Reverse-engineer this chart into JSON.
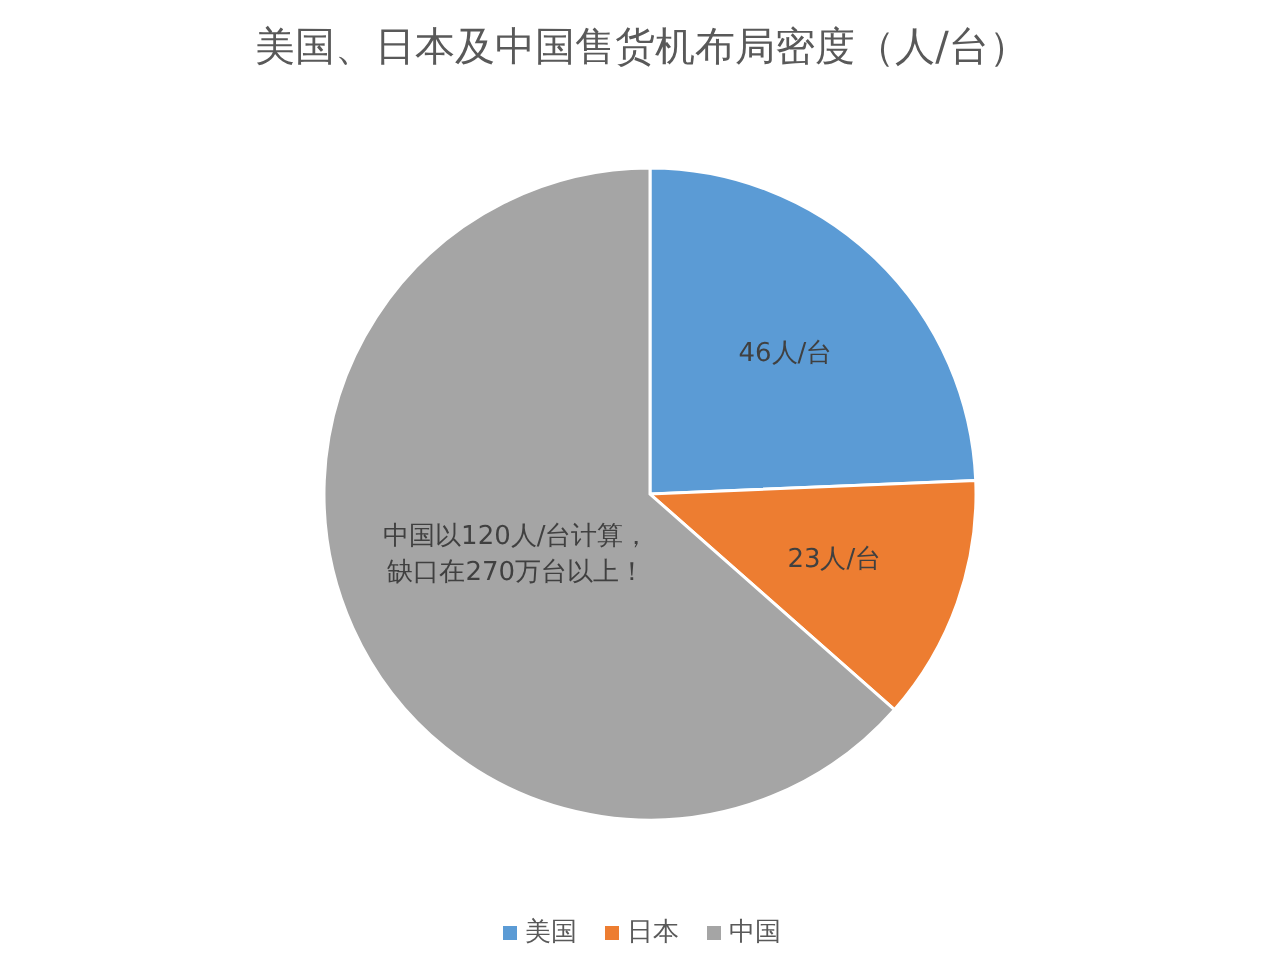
{
  "chart_data": {
    "type": "pie",
    "title": "美国、日本及中国售货机布局密度（人/台）",
    "categories": [
      "美国",
      "日本",
      "中国"
    ],
    "values": [
      46,
      23,
      120
    ],
    "colors": [
      "#5b9bd5",
      "#ed7d31",
      "#a5a5a5"
    ],
    "value_labels": [
      "46人/台",
      "23人/台",
      "中国以120人/台计算，缺口在270万台以上！"
    ],
    "legend": "bottom"
  }
}
